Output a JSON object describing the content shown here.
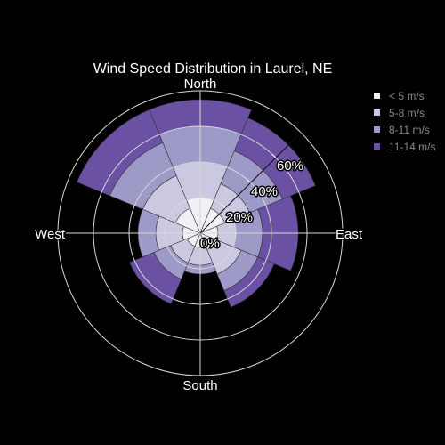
{
  "chart_data": {
    "type": "barpolar",
    "title": "Wind Speed Distribution in Laurel, NE",
    "directions": [
      "North",
      "NE",
      "East",
      "SE",
      "South",
      "SW",
      "West",
      "NW"
    ],
    "compass_labels": [
      "North",
      "East",
      "South",
      "West"
    ],
    "radial_tick_labels": [
      "0%",
      "20%",
      "40%",
      "60%"
    ],
    "radial_ticks": [
      0,
      20,
      40,
      60
    ],
    "rmax": 80,
    "series": [
      {
        "name": "< 5 m/s",
        "color": "#f2f0f7",
        "values": [
          20,
          15,
          10,
          10,
          8,
          8,
          10,
          15
        ]
      },
      {
        "name": "5-8 m/s",
        "color": "#cbc9e2",
        "values": [
          20,
          15,
          10,
          15,
          10,
          10,
          15,
          20
        ]
      },
      {
        "name": "8-11 m/s",
        "color": "#9e9ac8",
        "values": [
          20,
          20,
          15,
          10,
          5,
          10,
          10,
          20
        ]
      },
      {
        "name": "11-14 m/s",
        "color": "#6a51a3",
        "values": [
          15,
          20,
          20,
          10,
          0,
          15,
          0,
          20
        ]
      }
    ]
  }
}
